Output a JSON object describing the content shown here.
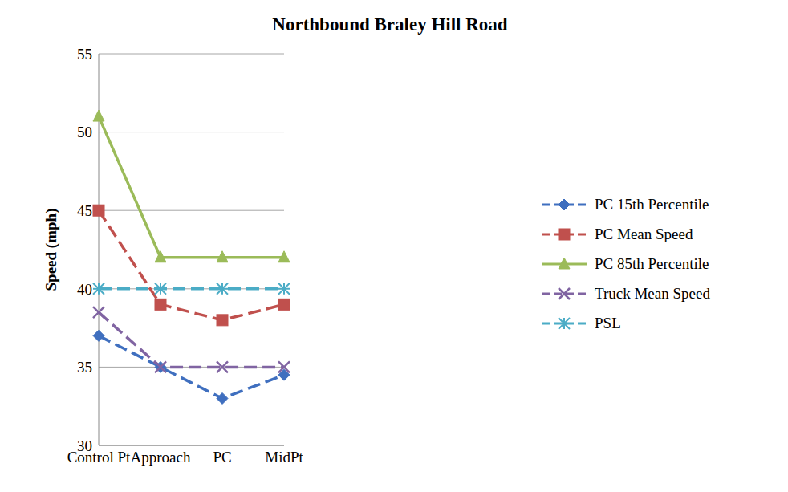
{
  "chart_data": {
    "type": "line",
    "title": "Northbound Braley Hill Road",
    "y_label": "Speed (mph)",
    "categories": [
      "Control Pt",
      "Approach",
      "PC",
      "MidPt"
    ],
    "series": [
      {
        "name": "PC 15th Percentile",
        "color": "#3f6fbf",
        "marker": "diamond",
        "line_style": "dashed",
        "values": [
          37,
          35,
          33,
          34.5
        ]
      },
      {
        "name": "PC Mean Speed",
        "color": "#c0504d",
        "marker": "square",
        "line_style": "dashed",
        "values": [
          45,
          39,
          38,
          39
        ]
      },
      {
        "name": "PC 85th Percentile",
        "color": "#9bbb59",
        "marker": "triangle",
        "line_style": "solid",
        "values": [
          51,
          42,
          42,
          42
        ]
      },
      {
        "name": "Truck Mean Speed",
        "color": "#8064a2",
        "marker": "x",
        "line_style": "dashed",
        "values": [
          38.5,
          35,
          35,
          35
        ]
      },
      {
        "name": "PSL",
        "color": "#4bacc6",
        "marker": "star",
        "line_style": "dashed",
        "values": [
          40,
          40,
          40,
          40
        ]
      }
    ],
    "ylim": [
      30,
      55
    ],
    "yticks": [
      30,
      35,
      40,
      45,
      50,
      55
    ],
    "grid": true,
    "legend": "right"
  }
}
